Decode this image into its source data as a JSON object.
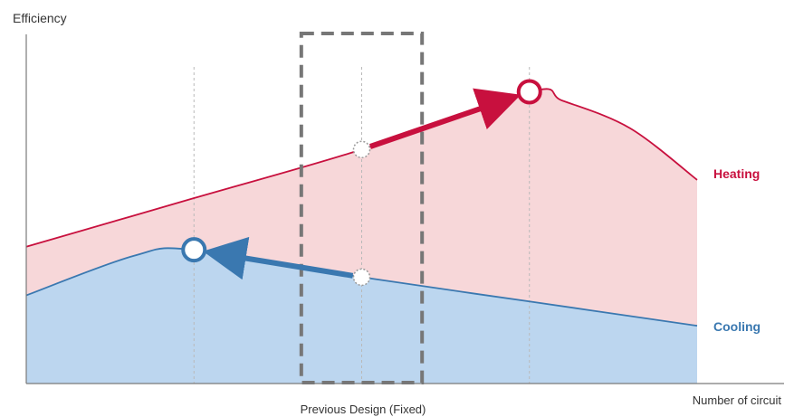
{
  "chart_data": {
    "type": "area",
    "ylabel": "Efficiency",
    "xlabel": "Number of circuit",
    "xlim": [
      0,
      100
    ],
    "ylim": [
      0,
      100
    ],
    "grid": false,
    "series": [
      {
        "name": "Heating",
        "color": "#c8103e",
        "fill": "#f7d7d9",
        "x": [
          0,
          25,
          50,
          75,
          80,
          90,
          100
        ],
        "y": [
          45,
          61,
          77,
          96,
          93,
          84,
          67
        ]
      },
      {
        "name": "Cooling",
        "color": "#3a78b0",
        "fill": "#bcd6ef",
        "x": [
          0,
          16,
          25,
          50,
          75,
          100
        ],
        "y": [
          29,
          42,
          44,
          35,
          27,
          19
        ]
      }
    ],
    "guides": {
      "color": "#b9b9b9",
      "x": [
        25,
        50,
        75
      ]
    },
    "highlight_box": {
      "label": "Previous Design (Fixed)",
      "color": "#777777",
      "x_range": [
        41,
        59
      ]
    },
    "markers": [
      {
        "series": "Heating",
        "x": 50,
        "y": 77,
        "type": "previous"
      },
      {
        "series": "Heating",
        "x": 75,
        "y": 96,
        "type": "optimized"
      },
      {
        "series": "Cooling",
        "x": 50,
        "y": 35,
        "type": "previous"
      },
      {
        "series": "Cooling",
        "x": 25,
        "y": 44,
        "type": "optimized"
      }
    ],
    "arrows": [
      {
        "series": "Heating",
        "from_x": 50,
        "to_x": 75
      },
      {
        "series": "Cooling",
        "from_x": 50,
        "to_x": 25
      }
    ]
  }
}
